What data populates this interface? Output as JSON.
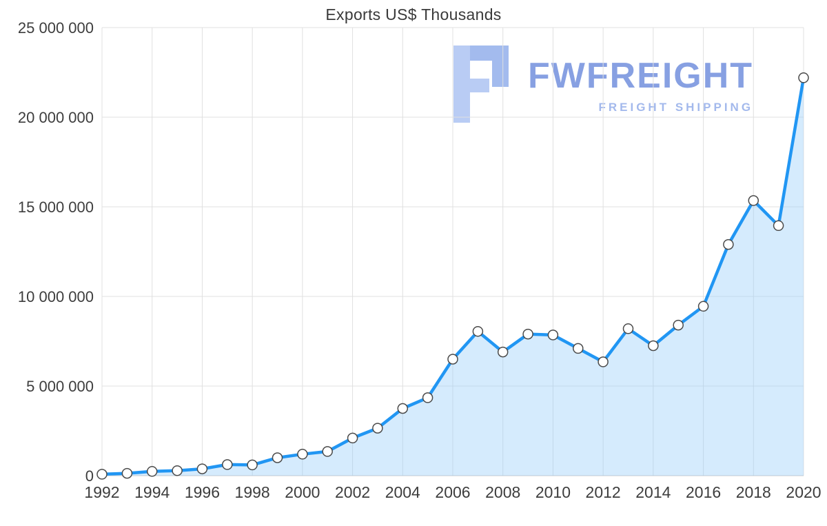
{
  "watermark": {
    "brand": "FWFREIGHT",
    "tagline": "FREIGHT SHIPPING",
    "brand_color": "#7d99e0",
    "tagline_color": "#9fb6ec",
    "glyph_color": "#b9ccf4",
    "glyph_accent_color": "#a3bbee"
  },
  "chart_data": {
    "type": "line",
    "title": "Exports US$ Thousands",
    "xlabel": "",
    "ylabel": "",
    "x": [
      1992,
      1993,
      1994,
      1995,
      1996,
      1997,
      1998,
      1999,
      2000,
      2001,
      2002,
      2003,
      2004,
      2005,
      2006,
      2007,
      2008,
      2009,
      2010,
      2011,
      2012,
      2013,
      2014,
      2015,
      2016,
      2017,
      2018,
      2019,
      2020
    ],
    "values": [
      80000,
      130000,
      240000,
      280000,
      380000,
      620000,
      600000,
      1000000,
      1200000,
      1350000,
      2100000,
      2650000,
      3750000,
      4350000,
      6500000,
      8050000,
      6900000,
      7900000,
      7850000,
      7100000,
      6350000,
      8200000,
      7250000,
      8400000,
      9450000,
      12900000,
      15350000,
      13950000,
      22200000
    ],
    "series_name": "Exports US$ Thousands",
    "xlim": [
      1992,
      2020
    ],
    "ylim": [
      0,
      25000000
    ],
    "grid": true,
    "x_tick_labels": [
      "1992",
      "1994",
      "1996",
      "1998",
      "2000",
      "2002",
      "2004",
      "2006",
      "2008",
      "2010",
      "2012",
      "2014",
      "2016",
      "2018",
      "2020"
    ],
    "y_ticks": [
      {
        "value": 0,
        "label": "0"
      },
      {
        "value": 5000000,
        "label": "5 000 000"
      },
      {
        "value": 10000000,
        "label": "10 000 000"
      },
      {
        "value": 15000000,
        "label": "15 000 000"
      },
      {
        "value": 20000000,
        "label": "20 000 000"
      },
      {
        "value": 25000000,
        "label": "25 000 000"
      }
    ],
    "line_color": "#2196f3",
    "area_color": "rgba(144, 202, 249, 0.38)",
    "marker_fill": "#ffffff",
    "marker_stroke": "#4a4a4a",
    "grid_color": "#e0e0e0",
    "axis_line_color": "#c8c8c8",
    "tick_label_color": "#3d3d3d",
    "legend": "none"
  }
}
